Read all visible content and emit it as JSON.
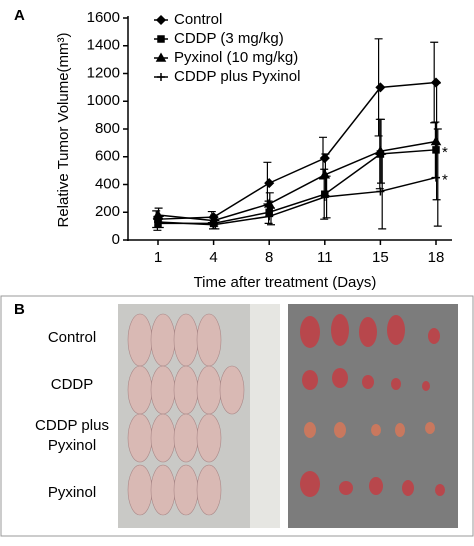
{
  "chart_data": {
    "type": "line",
    "panel_label": "A",
    "y_label": "Relative Tumor Volume(mm³)",
    "x_label": "Time after treatment (Days)",
    "categories": [
      "1",
      "4",
      "8",
      "11",
      "15",
      "18"
    ],
    "ylim": [
      0,
      1600
    ],
    "yticks": [
      0,
      200,
      400,
      600,
      800,
      1000,
      1200,
      1400,
      1600
    ],
    "legend": "upper-left",
    "series": [
      {
        "name": "Control",
        "color": "#000000",
        "marker": "diamond",
        "values": [
          150,
          165,
          410,
          590,
          1100,
          1135
        ],
        "errors": [
          60,
          40,
          150,
          150,
          350,
          290
        ]
      },
      {
        "name": "CDDP (3 mg/kg)",
        "color": "#000000",
        "marker": "square",
        "values": [
          120,
          120,
          200,
          330,
          620,
          650
        ],
        "errors": [
          50,
          40,
          80,
          180,
          250,
          200
        ]
      },
      {
        "name": "Pyxinol (10 mg/kg)",
        "color": "#000000",
        "marker": "triangle",
        "values": [
          180,
          140,
          260,
          470,
          640,
          710
        ],
        "errors": [
          50,
          40,
          80,
          150,
          230,
          420
        ]
      },
      {
        "name": "CDDP plus Pyxinol",
        "color": "#000000",
        "marker": "star",
        "values": [
          130,
          110,
          170,
          310,
          350,
          450
        ],
        "errors": [
          40,
          30,
          60,
          150,
          270,
          350
        ]
      }
    ],
    "annotations": [
      {
        "text": "*",
        "series": 1
      },
      {
        "text": "*",
        "series": 3
      }
    ]
  },
  "panel_b": {
    "label": "B",
    "groups": [
      "Control",
      "CDDP",
      "CDDP plus",
      "Pyxinol",
      "Pyxinol"
    ]
  }
}
